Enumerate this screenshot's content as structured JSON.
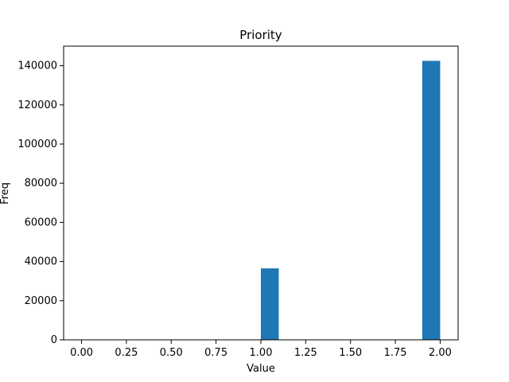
{
  "chart_data": {
    "type": "bar",
    "title": "Priority",
    "xlabel": "Value",
    "ylabel": "Freq",
    "xlim": [
      -0.1,
      2.1
    ],
    "ylim": [
      0,
      150000
    ],
    "grid": false,
    "bin_width": 0.1,
    "bins": [
      {
        "x": 0.0,
        "value": 0
      },
      {
        "x": 1.0,
        "value": 36500
      },
      {
        "x": 1.9,
        "value": 142500
      }
    ],
    "xticks": [
      0.0,
      0.25,
      0.5,
      0.75,
      1.0,
      1.25,
      1.5,
      1.75,
      2.0
    ],
    "xtick_labels": [
      "0.00",
      "0.25",
      "0.50",
      "0.75",
      "1.00",
      "1.25",
      "1.50",
      "1.75",
      "2.00"
    ],
    "yticks": [
      0,
      20000,
      40000,
      60000,
      80000,
      100000,
      120000,
      140000
    ],
    "ytick_labels": [
      "0",
      "20000",
      "40000",
      "60000",
      "80000",
      "100000",
      "120000",
      "140000"
    ],
    "colors": {
      "bar": "#1f77b4",
      "axis": "#000000",
      "background": "#ffffff"
    }
  }
}
